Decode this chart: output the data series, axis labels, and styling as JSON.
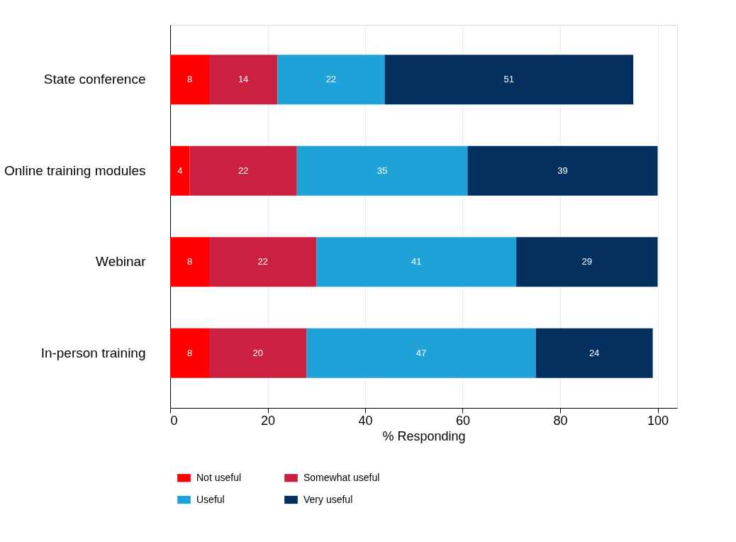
{
  "chart_data": {
    "type": "bar",
    "orientation": "horizontal",
    "stacked": true,
    "xlabel": "% Responding",
    "categories": [
      "State conference",
      "Online training modules",
      "Webinar",
      "In-person training"
    ],
    "series": [
      {
        "name": "Not useful",
        "color": "#ff0000",
        "values": [
          8,
          4,
          8,
          8
        ]
      },
      {
        "name": "Somewhat useful",
        "color": "#cc2040",
        "values": [
          14,
          22,
          22,
          20
        ]
      },
      {
        "name": "Useful",
        "color": "#1fa2d8",
        "values": [
          22,
          35,
          41,
          47
        ]
      },
      {
        "name": "Very useful",
        "color": "#03305e",
        "values": [
          51,
          39,
          29,
          24
        ]
      }
    ],
    "xlim": [
      0,
      104
    ],
    "xticks": [
      0,
      20,
      40,
      60,
      80,
      100
    ],
    "grid": "x",
    "legend": "bottom",
    "data_labels": true
  }
}
